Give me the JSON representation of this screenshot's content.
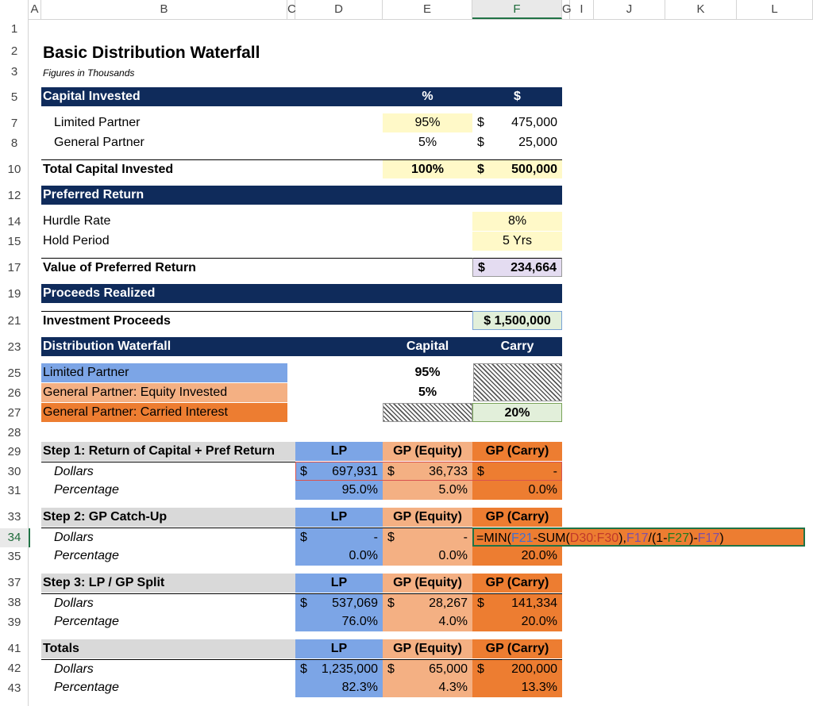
{
  "columns": [
    "A",
    "B",
    "C",
    "D",
    "E",
    "F",
    "G",
    "I",
    "J",
    "K",
    "L"
  ],
  "rows": [
    "1",
    "2",
    "3",
    "5",
    "7",
    "8",
    "10",
    "12",
    "14",
    "15",
    "17",
    "19",
    "21",
    "23",
    "25",
    "26",
    "27",
    "28",
    "29",
    "30",
    "31",
    "33",
    "34",
    "35",
    "37",
    "38",
    "39",
    "41",
    "42",
    "43"
  ],
  "title": "Basic Distribution Waterfall",
  "subtitle": "Figures in Thousands",
  "capital": {
    "header": "Capital Invested",
    "pct_header": "%",
    "usd_header": "$",
    "lp_label": "Limited Partner",
    "lp_pct": "95%",
    "lp_amt": "475,000",
    "gp_label": "General Partner",
    "gp_pct": "5%",
    "gp_amt": "25,000",
    "total_label": "Total Capital Invested",
    "total_pct": "100%",
    "total_amt": "500,000"
  },
  "pref": {
    "header": "Preferred Return",
    "hurdle_label": "Hurdle Rate",
    "hurdle": "8%",
    "hold_label": "Hold Period",
    "hold": "5 Yrs",
    "value_label": "Value of Preferred Return",
    "value": "234,664"
  },
  "proceeds": {
    "header": "Proceeds Realized",
    "label": "Investment Proceeds",
    "value": "$ 1,500,000"
  },
  "waterfall": {
    "header": "Distribution Waterfall",
    "capital_header": "Capital",
    "carry_header": "Carry",
    "lp_label": "Limited Partner",
    "lp_capital": "95%",
    "gpe_label": "General Partner: Equity Invested",
    "gpe_capital": "5%",
    "gpc_label": "General Partner: Carried Interest",
    "gpc_carry": "20%"
  },
  "col_heads": {
    "lp": "LP",
    "gpe": "GP (Equity)",
    "gpc": "GP (Carry)"
  },
  "row_labels": {
    "dollars": "Dollars",
    "percentage": "Percentage"
  },
  "currency": "$",
  "step1": {
    "title": "Step 1: Return of Capital + Pref Return",
    "lp_d": "697,931",
    "gpe_d": "36,733",
    "gpc_d": "-",
    "lp_p": "95.0%",
    "gpe_p": "5.0%",
    "gpc_p": "0.0%"
  },
  "step2": {
    "title": "Step 2: GP Catch-Up",
    "lp_d": "-",
    "gpe_d": "-",
    "lp_p": "0.0%",
    "gpe_p": "0.0%",
    "gpc_p": "20.0%"
  },
  "formula": {
    "p1": "=MIN(",
    "p2": "F21",
    "p3": "-SUM(",
    "p4": "D30:F30",
    "p5": "),",
    "p6": "F17",
    "p7": "/(1-",
    "p8": "F27",
    "p9": ")-",
    "p10": "F17",
    "p11": ")",
    "colors": {
      "c1": "#3f6fd1",
      "c2": "#c0392b",
      "c3": "#7b4fa8",
      "c4": "#1f7a1f"
    }
  },
  "step3": {
    "title": "Step 3: LP / GP Split",
    "lp_d": "537,069",
    "gpe_d": "28,267",
    "gpc_d": "141,334",
    "lp_p": "76.0%",
    "gpe_p": "4.0%",
    "gpc_p": "20.0%"
  },
  "totals": {
    "title": "Totals",
    "lp_d": "1,235,000",
    "gpe_d": "65,000",
    "gpc_d": "200,000",
    "lp_p": "82.3%",
    "gpe_p": "4.3%",
    "gpc_p": "13.3%"
  }
}
